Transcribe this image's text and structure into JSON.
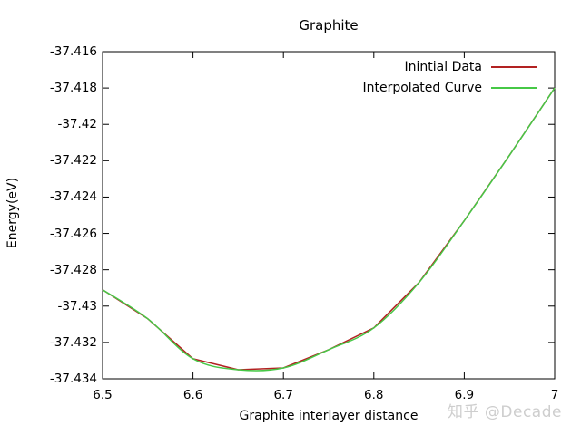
{
  "watermark": {
    "text": "知乎 @Decade"
  },
  "chart_data": {
    "type": "line",
    "title": "Graphite",
    "xlabel": "Graphite interlayer distance",
    "ylabel": "Energy(eV)",
    "xlim": [
      6.5,
      7
    ],
    "ylim": [
      -37.434,
      -37.416
    ],
    "xticks": [
      6.5,
      6.6,
      6.7,
      6.8,
      6.9,
      7
    ],
    "xtick_labels": [
      "6.5",
      "6.6",
      "6.7",
      "6.8",
      "6.9",
      "7"
    ],
    "yticks": [
      -37.416,
      -37.418,
      -37.42,
      -37.422,
      -37.424,
      -37.426,
      -37.428,
      -37.43,
      -37.432,
      -37.434
    ],
    "ytick_labels": [
      "-37.416",
      "-37.418",
      "-37.42",
      "-37.422",
      "-37.424",
      "-37.426",
      "-37.428",
      "-37.43",
      "-37.432",
      "-37.434"
    ],
    "grid": false,
    "legend_position": "top-right-inside",
    "x": [
      6.5,
      6.55,
      6.6,
      6.65,
      6.7,
      6.75,
      6.8,
      6.85,
      6.9,
      6.95,
      7.0
    ],
    "series": [
      {
        "name": "Inintial Data",
        "color": "#b22222",
        "style": "linear-segments",
        "values": [
          -37.4291,
          -37.4307,
          -37.4329,
          -37.4335,
          -37.4334,
          -37.4324,
          -37.4312,
          -37.4287,
          -37.4253,
          -37.4217,
          -37.418
        ]
      },
      {
        "name": "Interpolated Curve",
        "color": "#46c846",
        "style": "smooth-spline",
        "values": [
          -37.4291,
          -37.4307,
          -37.4329,
          -37.4335,
          -37.4334,
          -37.4324,
          -37.4312,
          -37.4287,
          -37.4253,
          -37.4217,
          -37.418
        ]
      }
    ],
    "axis_color": "#000000",
    "background": "#ffffff"
  }
}
